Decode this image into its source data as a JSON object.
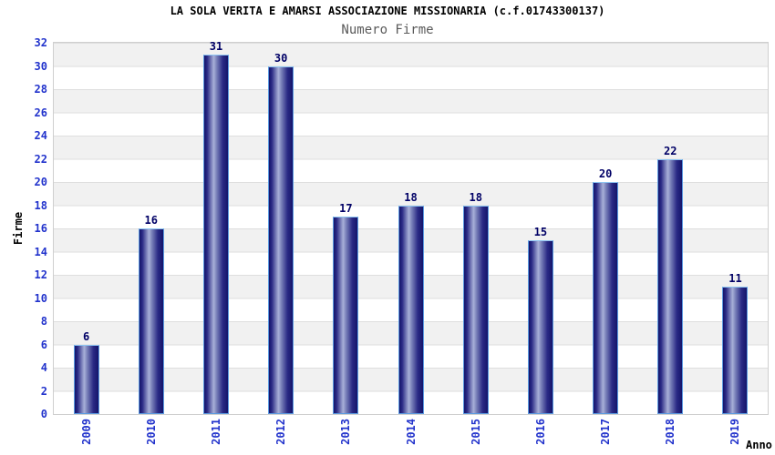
{
  "chart_data": {
    "type": "bar",
    "title": "LA SOLA VERITA E AMARSI ASSOCIAZIONE MISSIONARIA (c.f.01743300137)",
    "subtitle": "Numero Firme",
    "xlabel": "Anno",
    "ylabel": "Firme",
    "categories": [
      "2009",
      "2010",
      "2011",
      "2012",
      "2013",
      "2014",
      "2015",
      "2016",
      "2017",
      "2018",
      "2019"
    ],
    "values": [
      6,
      16,
      31,
      30,
      17,
      18,
      18,
      15,
      20,
      22,
      11
    ],
    "ylim": [
      0,
      32
    ],
    "ytick_step": 2,
    "grid": "horizontal-bands-alternating",
    "legend": "none",
    "colors": {
      "bar_edge_dark": "#14146a",
      "bar_mid": "#2a2a85",
      "bar_center_light": "#a8b0d8",
      "bar_border": "#5b9ae0",
      "bar_border_top": "#8cc4f2",
      "tick_label": "#2233cc",
      "value_label": "#000066",
      "title": "#000000",
      "subtitle": "#5a5a5a",
      "axis_title": "#000000",
      "band_gray": "#f1f1f1",
      "band_white": "#ffffff",
      "grid_line": "#dedede",
      "plot_border": "#cfcfcf",
      "background": "#ffffff"
    }
  }
}
